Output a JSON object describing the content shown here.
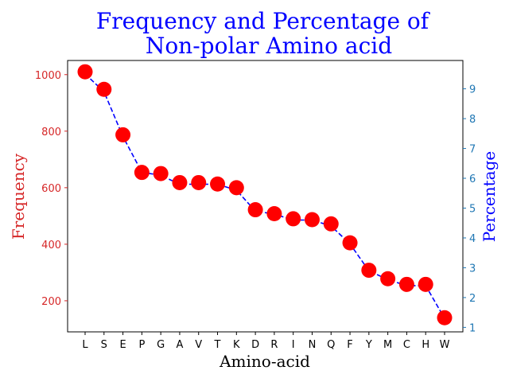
{
  "chart_data": {
    "type": "scatter",
    "title_line1": "Frequency and Percentage of",
    "title_line2": "Non-polar Amino acid",
    "xlabel": "Amino-acid",
    "ylabel_left": "Frequency",
    "ylabel_right": "Percentage",
    "categories": [
      "L",
      "S",
      "E",
      "P",
      "G",
      "A",
      "V",
      "T",
      "K",
      "D",
      "R",
      "I",
      "N",
      "Q",
      "F",
      "Y",
      "M",
      "C",
      "H",
      "W"
    ],
    "series": [
      {
        "axis": "left",
        "marker": "circle",
        "color": "#ff0000",
        "values": [
          1010,
          948,
          787,
          654,
          650,
          618,
          618,
          613,
          600,
          522,
          508,
          490,
          487,
          472,
          405,
          308,
          278,
          258,
          258,
          140
        ]
      },
      {
        "axis": "right",
        "line_style": "dashed",
        "color": "#0000ff",
        "values": [
          9.5,
          8.9,
          7.4,
          6.2,
          6.1,
          5.8,
          5.8,
          5.8,
          5.6,
          4.9,
          4.8,
          4.6,
          4.6,
          4.4,
          3.8,
          2.9,
          2.6,
          2.4,
          2.4,
          1.3
        ]
      }
    ],
    "ylim_left": [
      90,
      1050
    ],
    "ylim_right": [
      0.85,
      9.95
    ],
    "yticks_left": [
      200,
      400,
      600,
      800,
      1000
    ],
    "yticks_right": [
      1,
      2,
      3,
      4,
      5,
      6,
      7,
      8,
      9
    ],
    "grid": false,
    "legend": "none",
    "colors": {
      "left_axis": "#d62728",
      "right_axis": "#1f77b4",
      "title": "#0000ff"
    }
  }
}
